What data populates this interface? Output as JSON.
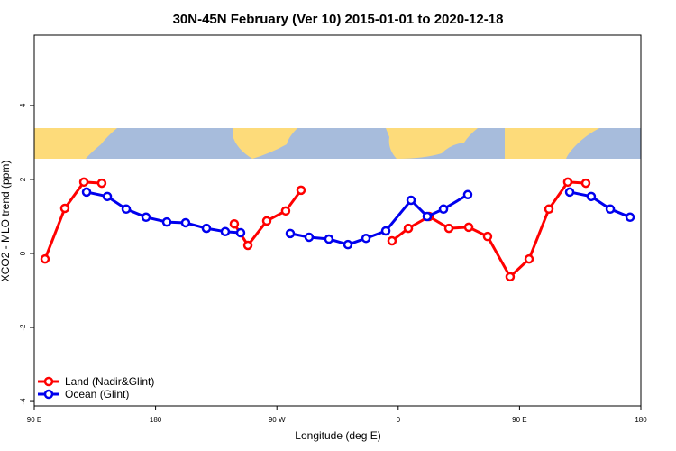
{
  "chart_data": {
    "type": "line",
    "title": "30N-45N February (Ver 10)   2015-01-01 to 2020-12-18",
    "xlabel": "Longitude (deg E)",
    "ylabel": "XCO2 - MLO trend (ppm)",
    "xlim": [
      90,
      540
    ],
    "ylim": [
      -4.12,
      5.9
    ],
    "xticks": [
      {
        "value": 90,
        "label": "90 E"
      },
      180,
      {
        "value": 270,
        "label": "90 W"
      },
      {
        "value": 360,
        "label": "0"
      },
      {
        "value": 450,
        "label": "90 E"
      },
      {
        "value": 540,
        "label": "180"
      }
    ],
    "yticks": [
      -4,
      -2,
      0,
      2,
      4
    ],
    "legend": "bottom-left",
    "series": [
      {
        "name": "Land (Nadir&Glint)",
        "color": "#ff0000",
        "x": [
          98.0,
          112.7,
          126.8,
          140.1,
          null,
          238.4,
          248.5,
          262.5,
          276.5,
          287.9,
          null,
          355.4,
          367.5,
          382.9,
          397.6,
          412.3,
          426.3,
          443.0,
          457.1,
          471.8,
          485.8,
          499.2
        ],
        "values": [
          -0.15,
          1.22,
          1.93,
          1.9,
          null,
          0.8,
          0.22,
          0.88,
          1.15,
          1.71,
          null,
          0.34,
          0.68,
          1.0,
          0.68,
          0.71,
          0.46,
          -0.63,
          -0.15,
          1.2,
          1.93,
          1.9
        ]
      },
      {
        "name": "Ocean (Glint)",
        "color": "#0000ee",
        "x": [
          128.8,
          144.2,
          158.2,
          172.9,
          188.3,
          202.3,
          217.7,
          231.7,
          243.1,
          null,
          279.9,
          293.9,
          308.6,
          322.7,
          336.1,
          350.8,
          369.5,
          381.5,
          393.6,
          411.6,
          null,
          487.2,
          503.2,
          517.3,
          532.0
        ],
        "values": [
          1.66,
          1.54,
          1.2,
          0.98,
          0.85,
          0.83,
          0.68,
          0.59,
          0.56,
          null,
          0.54,
          0.44,
          0.39,
          0.24,
          0.41,
          0.61,
          1.44,
          1.0,
          1.2,
          1.59,
          null,
          1.66,
          1.54,
          1.2,
          0.98
        ]
      }
    ]
  }
}
